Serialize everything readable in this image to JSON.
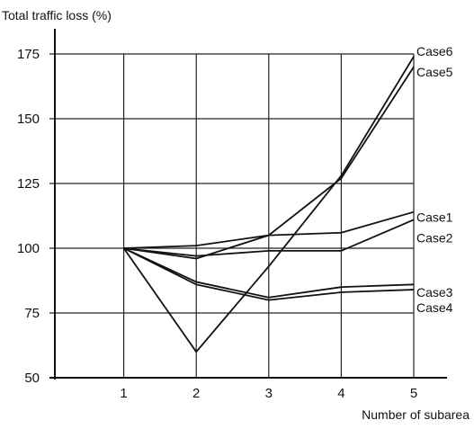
{
  "chart_data": {
    "type": "line",
    "title": "",
    "ylabel": "Total traffic loss (%)",
    "xlabel": "Number of subarea",
    "x": [
      1,
      2,
      3,
      4,
      5
    ],
    "xlim": [
      0,
      5.5
    ],
    "ylim": [
      50,
      180
    ],
    "yticks": [
      50,
      75,
      100,
      125,
      150,
      175
    ],
    "xticks": [
      1,
      2,
      3,
      4,
      5
    ],
    "grid": true,
    "series": [
      {
        "name": "Case6",
        "values": [
          100,
          60,
          93,
          128,
          174
        ]
      },
      {
        "name": "Case5",
        "values": [
          100,
          96,
          105,
          127,
          170
        ]
      },
      {
        "name": "Case1",
        "values": [
          100,
          101,
          105,
          106,
          114
        ]
      },
      {
        "name": "Case2",
        "values": [
          100,
          97,
          99,
          99,
          111
        ]
      },
      {
        "name": "Case3",
        "values": [
          100,
          87,
          81,
          85,
          86
        ]
      },
      {
        "name": "Case4",
        "values": [
          100,
          86,
          80,
          83,
          84
        ]
      }
    ],
    "series_label_y": [
      176,
      168,
      112,
      104,
      83,
      77
    ]
  }
}
